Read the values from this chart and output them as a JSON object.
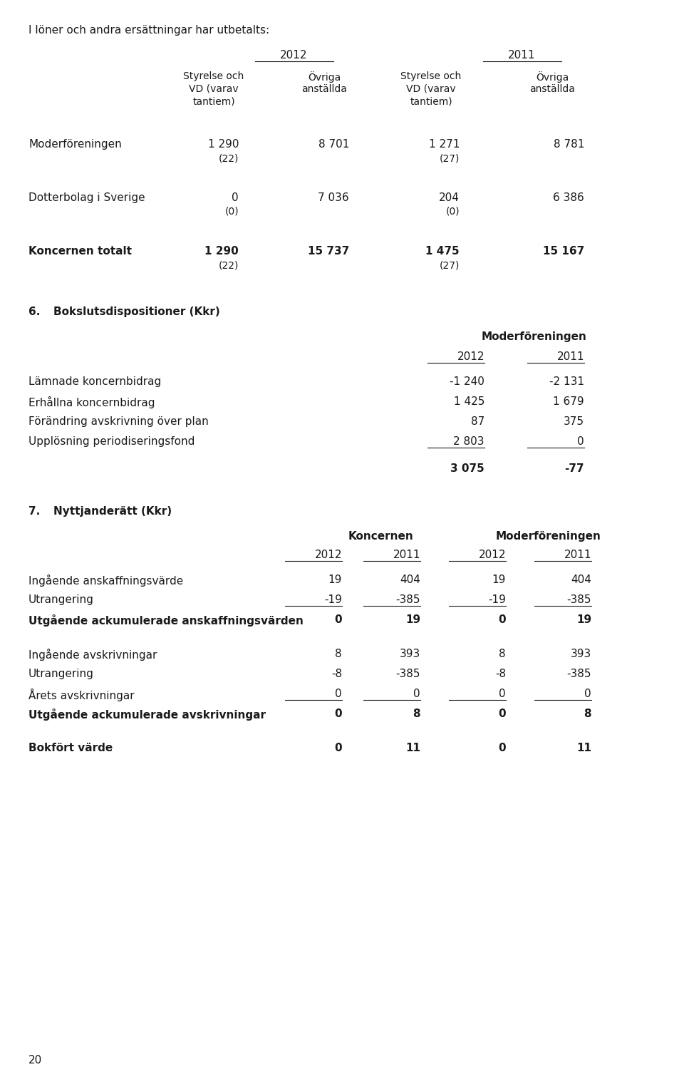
{
  "bg_color": "#ffffff",
  "text_color": "#1a1a1a",
  "font_size": 11.0,
  "page_number": "20",
  "section1": {
    "intro": "I löner och andra ersättningar har utbetalts:",
    "col_headers": [
      [
        "Styrelse och",
        "VD (varav",
        "tantiem)"
      ],
      [
        "Övriga",
        "anställda"
      ],
      [
        "Styrelse och",
        "VD (varav",
        "tantiem)"
      ],
      [
        "Övriga",
        "anställda"
      ]
    ],
    "rows": [
      {
        "label": "Moderföreningen",
        "values": [
          "1 290",
          "8 701",
          "1 271",
          "8 781"
        ],
        "sub_values": [
          "(22)",
          "",
          "(27)",
          ""
        ],
        "bold": false
      },
      {
        "label": "Dotterbolag i Sverige",
        "values": [
          "0",
          "7 036",
          "204",
          "6 386"
        ],
        "sub_values": [
          "(0)",
          "",
          "(0)",
          ""
        ],
        "bold": false
      },
      {
        "label": "Koncernen totalt",
        "values": [
          "1 290",
          "15 737",
          "1 475",
          "15 167"
        ],
        "sub_values": [
          "(22)",
          "",
          "(27)",
          ""
        ],
        "bold": true
      }
    ]
  },
  "section6": {
    "heading_num": "6.",
    "heading": "Bokslutsdispositioner (Kkr)",
    "subheading": "Moderföreningen",
    "col_headers": [
      "2012",
      "2011"
    ],
    "rows": [
      {
        "label": "Lämnade koncernbidrag",
        "values": [
          "-1 240",
          "-2 131"
        ],
        "bold": false,
        "underline": false
      },
      {
        "label": "Erhållna koncernbidrag",
        "values": [
          "1 425",
          "1 679"
        ],
        "bold": false,
        "underline": false
      },
      {
        "label": "Förändring avskrivning över plan",
        "values": [
          "87",
          "375"
        ],
        "bold": false,
        "underline": false
      },
      {
        "label": "Upplösning periodiseringsfond",
        "values": [
          "2 803",
          "0"
        ],
        "bold": false,
        "underline": true
      }
    ],
    "total_row": {
      "values": [
        "3 075",
        "-77"
      ],
      "bold": true
    }
  },
  "section7": {
    "heading_num": "7.",
    "heading": "Nyttjanderätt (Kkr)",
    "group_headers": [
      "Koncernen",
      "Moderföreningen"
    ],
    "col_headers": [
      "2012",
      "2011",
      "2012",
      "2011"
    ],
    "rows": [
      {
        "label": "Ingående anskaffningsvärde",
        "values": [
          "19",
          "404",
          "19",
          "404"
        ],
        "bold": false,
        "underline": false
      },
      {
        "label": "Utrangering",
        "values": [
          "-19",
          "-385",
          "-19",
          "-385"
        ],
        "bold": false,
        "underline": true
      },
      {
        "label": "Utgående ackumulerade anskaffningsvärden",
        "values": [
          "0",
          "19",
          "0",
          "19"
        ],
        "bold": true,
        "underline": false
      },
      {
        "label": "Ingående avskrivningar",
        "values": [
          "8",
          "393",
          "8",
          "393"
        ],
        "bold": false,
        "underline": false
      },
      {
        "label": "Utrangering",
        "values": [
          "-8",
          "-385",
          "-8",
          "-385"
        ],
        "bold": false,
        "underline": false
      },
      {
        "label": "Årets avskrivningar",
        "values": [
          "0",
          "0",
          "0",
          "0"
        ],
        "bold": false,
        "underline": true
      },
      {
        "label": "Utgående ackumulerade avskrivningar",
        "values": [
          "0",
          "8",
          "0",
          "8"
        ],
        "bold": true,
        "underline": false
      },
      {
        "label": "Bokfört värde",
        "values": [
          "0",
          "11",
          "0",
          "11"
        ],
        "bold": true,
        "underline": false
      }
    ]
  }
}
